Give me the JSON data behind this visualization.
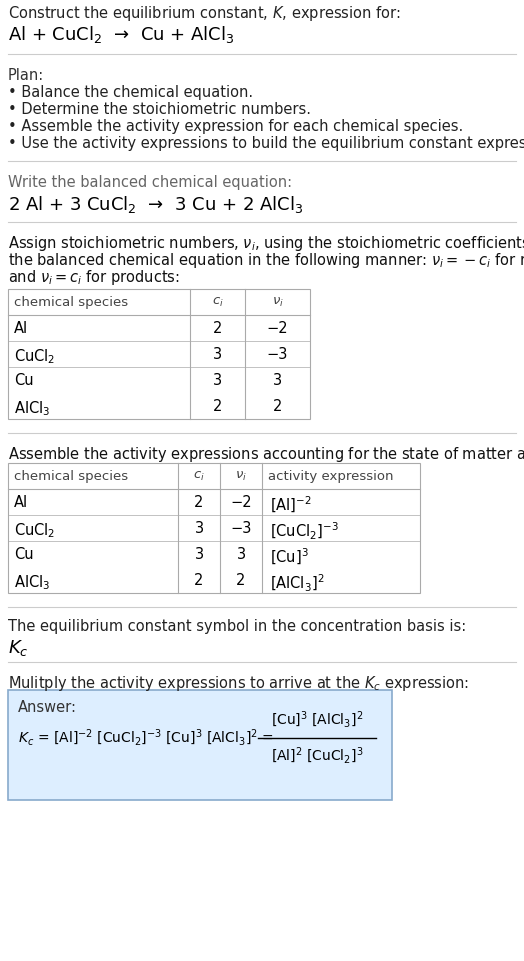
{
  "title_line1": "Construct the equilibrium constant, $K$, expression for:",
  "reaction_unbalanced": "Al + CuCl$_2$  →  Cu + AlCl$_3$",
  "plan_header": "Plan:",
  "plan_bullets": [
    "• Balance the chemical equation.",
    "• Determine the stoichiometric numbers.",
    "• Assemble the activity expression for each chemical species.",
    "• Use the activity expressions to build the equilibrium constant expression."
  ],
  "balanced_header": "Write the balanced chemical equation:",
  "reaction_balanced": "2 Al + 3 CuCl$_2$  →  3 Cu + 2 AlCl$_3$",
  "stoich_intro_lines": [
    "Assign stoichiometric numbers, $\\nu_i$, using the stoichiometric coefficients, $c_i$, from",
    "the balanced chemical equation in the following manner: $\\nu_i = -c_i$ for reactants",
    "and $\\nu_i = c_i$ for products:"
  ],
  "table1_headers": [
    "chemical species",
    "$c_i$",
    "$\\nu_i$"
  ],
  "table1_data": [
    [
      "Al",
      "2",
      "−2"
    ],
    [
      "CuCl$_2$",
      "3",
      "−3"
    ],
    [
      "Cu",
      "3",
      "3"
    ],
    [
      "AlCl$_3$",
      "2",
      "2"
    ]
  ],
  "activity_intro": "Assemble the activity expressions accounting for the state of matter and $\\nu_i$:",
  "table2_headers": [
    "chemical species",
    "$c_i$",
    "$\\nu_i$",
    "activity expression"
  ],
  "table2_data": [
    [
      "Al",
      "2",
      "−2",
      "[Al]$^{-2}$"
    ],
    [
      "CuCl$_2$",
      "3",
      "−3",
      "[CuCl$_2$]$^{-3}$"
    ],
    [
      "Cu",
      "3",
      "3",
      "[Cu]$^3$"
    ],
    [
      "AlCl$_3$",
      "2",
      "2",
      "[AlCl$_3$]$^2$"
    ]
  ],
  "kc_text": "The equilibrium constant symbol in the concentration basis is:",
  "kc_symbol": "$K_c$",
  "multiply_text": "Mulitply the activity expressions to arrive at the $K_c$ expression:",
  "answer_label": "Answer:",
  "bg_color": "#ffffff",
  "sep_color": "#cccccc",
  "table_color": "#aaaaaa",
  "answer_box_bg": "#ddeeff",
  "answer_box_border": "#88aacc"
}
